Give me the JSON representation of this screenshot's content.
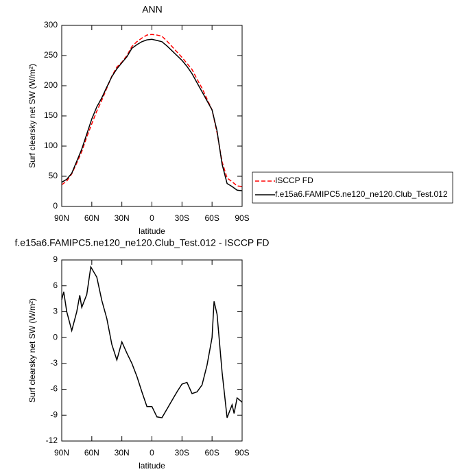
{
  "chart_data": [
    {
      "type": "line",
      "title": "ANN",
      "xlabel": "latitude",
      "ylabel": "Surf clearsky net SW (W/m²)",
      "x": [
        90,
        85,
        80,
        75,
        70,
        65,
        60,
        55,
        50,
        45,
        40,
        35,
        30,
        25,
        20,
        15,
        10,
        5,
        0,
        -5,
        -10,
        -15,
        -20,
        -25,
        -30,
        -35,
        -40,
        -45,
        -50,
        -55,
        -60,
        -65,
        -70,
        -75,
        -80,
        -85,
        -90
      ],
      "series": [
        {
          "name": "ISCCP FD",
          "color": "#ff0000",
          "linestyle": "dashed",
          "values": [
            36,
            42,
            54,
            72,
            91,
            115,
            137,
            158,
            176,
            196,
            216,
            231,
            239,
            250,
            265,
            273,
            279,
            284,
            285,
            284,
            282,
            274,
            265,
            256,
            247,
            237,
            227,
            211,
            196,
            178,
            160,
            122,
            74,
            47,
            41,
            34,
            33
          ]
        },
        {
          "name": "f.e15a6.FAMIPC5.ne120_ne120.Club_Test.012",
          "color": "#000000",
          "linestyle": "solid",
          "values": [
            40,
            45,
            55,
            75,
            95,
            120,
            145,
            165,
            180,
            198,
            215,
            228,
            238,
            248,
            262,
            268,
            273,
            276,
            277,
            275,
            273,
            266,
            258,
            250,
            242,
            232,
            220,
            205,
            190,
            175,
            160,
            125,
            70,
            38,
            33,
            27,
            26
          ]
        }
      ],
      "xlim": [
        90,
        -90
      ],
      "xticks": [
        {
          "value": 90,
          "label": "90N"
        },
        {
          "value": 60,
          "label": "60N"
        },
        {
          "value": 30,
          "label": "30N"
        },
        0,
        {
          "value": -30,
          "label": "30S"
        },
        {
          "value": -60,
          "label": "60S"
        },
        {
          "value": -90,
          "label": "90S"
        }
      ],
      "ylim": [
        0,
        300
      ],
      "yticks": [
        0,
        50,
        100,
        150,
        200,
        250,
        300
      ],
      "legend": "right"
    },
    {
      "type": "line",
      "title": "f.e15a6.FAMIPC5.ne120_ne120.Club_Test.012 - ISCCP FD",
      "xlabel": "latitude",
      "ylabel": "Surf clearsky net SW (W/m²)",
      "x": [
        90,
        88,
        85,
        80,
        75,
        72,
        70,
        65,
        61,
        55,
        50,
        45,
        40,
        35,
        30,
        25,
        20,
        15,
        10,
        5,
        0,
        -5,
        -10,
        -15,
        -20,
        -25,
        -30,
        -35,
        -40,
        -45,
        -50,
        -55,
        -60,
        -62,
        -65,
        -70,
        -75,
        -80,
        -82,
        -85,
        -90
      ],
      "series": [
        {
          "color": "#000000",
          "linestyle": "solid",
          "values": [
            4.4,
            5.3,
            3.0,
            0.8,
            3.0,
            4.9,
            3.5,
            5.0,
            8.2,
            7.0,
            4.3,
            2.2,
            -0.8,
            -2.6,
            -0.5,
            -1.8,
            -3.0,
            -4.5,
            -6.3,
            -8.0,
            -8.0,
            -9.2,
            -9.3,
            -8.3,
            -7.3,
            -6.3,
            -5.4,
            -5.2,
            -6.5,
            -6.3,
            -5.5,
            -3.2,
            0.0,
            4.2,
            2.7,
            -4.0,
            -9.3,
            -7.8,
            -8.8,
            -7.0,
            -7.5
          ]
        }
      ],
      "xlim": [
        90,
        -90
      ],
      "xticks": [
        {
          "value": 90,
          "label": "90N"
        },
        {
          "value": 60,
          "label": "60N"
        },
        {
          "value": 30,
          "label": "30N"
        },
        0,
        {
          "value": -30,
          "label": "30S"
        },
        {
          "value": -60,
          "label": "60S"
        },
        {
          "value": -90,
          "label": "90S"
        }
      ],
      "ylim": [
        -12,
        9
      ],
      "yticks": [
        -12,
        -9,
        -6,
        -3,
        0,
        3,
        6,
        9
      ]
    }
  ]
}
